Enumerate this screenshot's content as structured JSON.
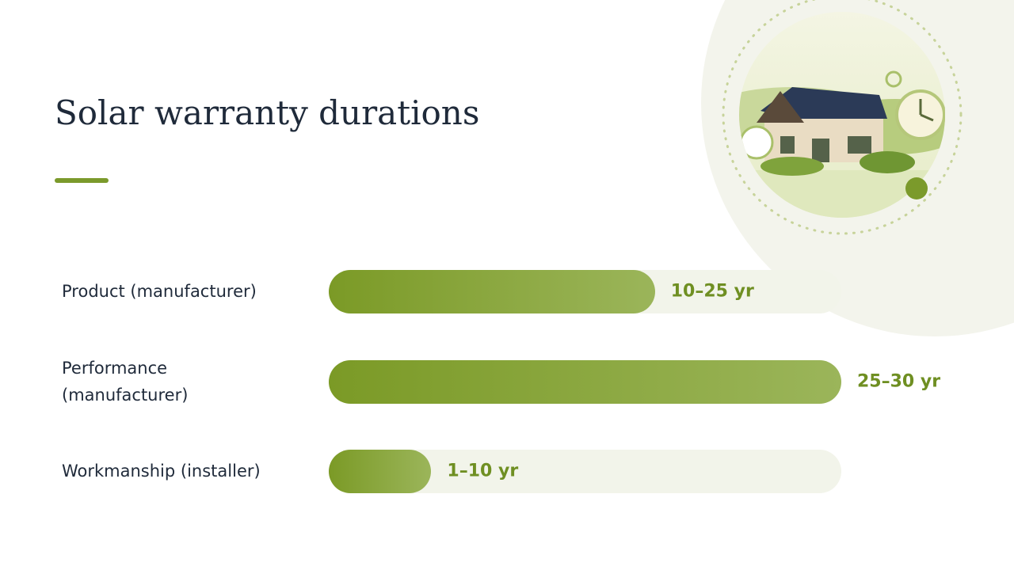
{
  "chart_data": {
    "type": "bar",
    "orientation": "horizontal",
    "title": "Solar warranty durations",
    "categories": [
      "Product (manufacturer)",
      "Performance (manufacturer)",
      "Workmanship (installer)"
    ],
    "ranges": [
      [
        10,
        25
      ],
      [
        25,
        30
      ],
      [
        1,
        10
      ]
    ],
    "value_labels": [
      "10–25 yr",
      "25–30 yr",
      "1–10 yr"
    ],
    "xlim": [
      0,
      27.5
    ]
  }
}
